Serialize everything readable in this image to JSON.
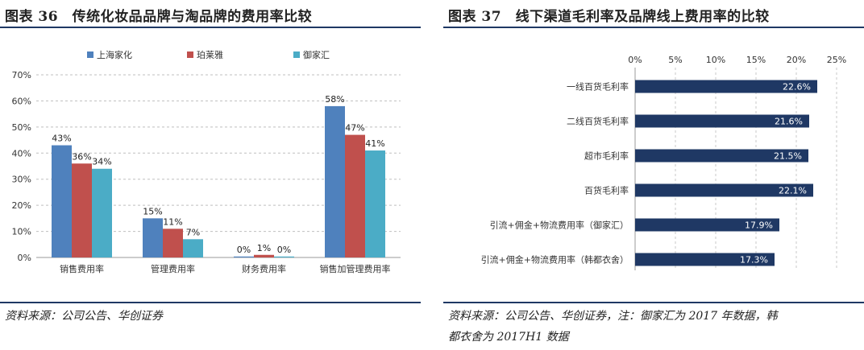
{
  "left": {
    "title": "图表 36　传统化妆品品牌与淘品牌的费用率比较",
    "source": "资料来源：公司公告、华创证券",
    "colors": [
      "#4f81bd",
      "#c0504d",
      "#4bacc6"
    ],
    "chart_data": {
      "type": "bar",
      "categories": [
        "销售费用率",
        "管理费用率",
        "财务费用率",
        "销售加管理费用率"
      ],
      "series": [
        {
          "name": "上海家化",
          "values": [
            43,
            15,
            0,
            58
          ]
        },
        {
          "name": "珀莱雅",
          "values": [
            36,
            11,
            1,
            47
          ]
        },
        {
          "name": "御家汇",
          "values": [
            34,
            7,
            0,
            41
          ]
        }
      ],
      "data_labels": [
        [
          "43%",
          "15%",
          "0%",
          "58%"
        ],
        [
          "36%",
          "11%",
          "1%",
          "47%"
        ],
        [
          "34%",
          "7%",
          "0%",
          "41%"
        ]
      ],
      "ylim": [
        0,
        70
      ],
      "yticks": [
        "0%",
        "10%",
        "20%",
        "30%",
        "40%",
        "50%",
        "60%",
        "70%"
      ],
      "grid": true,
      "legend": "top"
    }
  },
  "right": {
    "title": "图表 37　线下渠道毛利率及品牌线上费用率的比较",
    "source_line1": "资料来源：公司公告、华创证券，注：御家汇为 2017 年数据，韩",
    "source_line2": "都衣舍为 2017H1 数据",
    "bar_color": "#1f3864",
    "chart_data": {
      "type": "bar",
      "orientation": "horizontal",
      "categories": [
        "一线百货毛利率",
        "二线百货毛利率",
        "超市毛利率",
        "百货毛利率",
        "引流+佣金+物流费用率（御家汇）",
        "引流+佣金+物流费用率（韩都衣舍）"
      ],
      "values": [
        22.6,
        21.6,
        21.5,
        22.1,
        17.9,
        17.3
      ],
      "data_labels": [
        "22.6%",
        "21.6%",
        "21.5%",
        "22.1%",
        "17.9%",
        "17.3%"
      ],
      "xlim": [
        0,
        25
      ],
      "xticks": [
        "0%",
        "5%",
        "10%",
        "15%",
        "20%",
        "25%"
      ],
      "grid": true
    }
  }
}
